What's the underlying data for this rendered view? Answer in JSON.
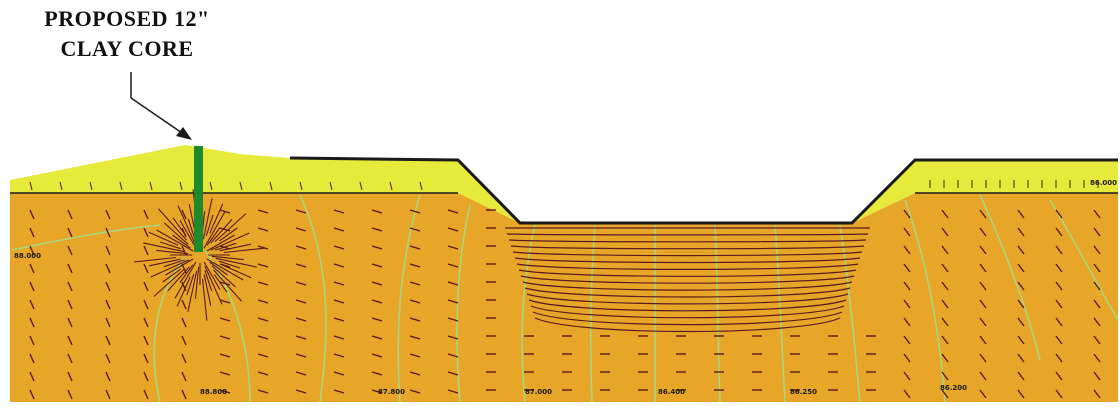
{
  "callout": {
    "line1": "PROPOSED 12\"",
    "line2": "CLAY CORE"
  },
  "contour_labels": [
    {
      "id": "left-mid",
      "text": "88.000"
    },
    {
      "id": "bottom-1",
      "text": "88.800"
    },
    {
      "id": "bottom-2",
      "text": "87.800"
    },
    {
      "id": "bottom-3",
      "text": "87.000"
    },
    {
      "id": "bottom-4",
      "text": "86.400"
    },
    {
      "id": "bottom-5",
      "text": "86.250"
    },
    {
      "id": "bottom-6",
      "text": "86.200"
    },
    {
      "id": "right-top",
      "text": "86.000"
    }
  ],
  "colors": {
    "embankment": "#e6ea3a",
    "foundation": "#e7a628",
    "clay_core": "#1f8a2c",
    "contour": "#a9d77a",
    "flow_vector": "#5a1a22",
    "outline": "#1a1a1a"
  }
}
